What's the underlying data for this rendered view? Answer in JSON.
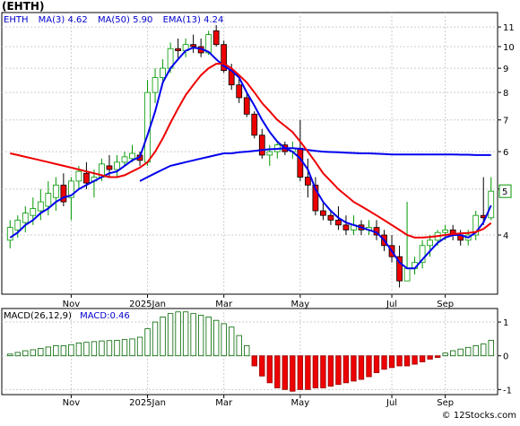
{
  "header": {
    "title": "(EHTH)",
    "indicators": [
      {
        "label": "EHTH",
        "value": ""
      },
      {
        "label": "MA(3)",
        "value": "4.62"
      },
      {
        "label": "MA(50)",
        "value": "5.90"
      },
      {
        "label": "EMA(13)",
        "value": "4.24"
      }
    ]
  },
  "macd_header": {
    "label": "MACD(26,12,9)",
    "value_label": "MACD:0.46"
  },
  "watermark": "© 12Stocks.com",
  "colors": {
    "up_candle": "#009900",
    "down_candle": "#ee0000",
    "ma3": "#0000ee",
    "ma50": "#0000ee",
    "ema13": "#ee0000",
    "macd_pos": "#006600",
    "macd_neg": "#ee0000",
    "grid": "#cccccc"
  },
  "chart_data": [
    {
      "type": "candlestick",
      "title": "(EHTH)",
      "y_scale": "log",
      "ylim": [
        3.0,
        11.8
      ],
      "y_ticks": [
        4,
        5,
        6,
        7,
        8,
        9,
        10,
        11
      ],
      "x_ticks": [
        "Nov",
        "2025Jan",
        "Mar",
        "May",
        "Jul",
        "Sep"
      ],
      "grid": true,
      "last_price_label": "5",
      "candles": [
        {
          "o": 3.9,
          "h": 4.3,
          "l": 3.75,
          "c": 4.15
        },
        {
          "o": 4.1,
          "h": 4.4,
          "l": 3.95,
          "c": 4.3
        },
        {
          "o": 4.25,
          "h": 4.6,
          "l": 4.05,
          "c": 4.45
        },
        {
          "o": 4.4,
          "h": 4.8,
          "l": 4.2,
          "c": 4.55
        },
        {
          "o": 4.5,
          "h": 5.0,
          "l": 4.3,
          "c": 4.7
        },
        {
          "o": 4.6,
          "h": 5.2,
          "l": 4.4,
          "c": 4.9
        },
        {
          "o": 4.8,
          "h": 5.3,
          "l": 4.5,
          "c": 5.1
        },
        {
          "o": 5.1,
          "h": 5.4,
          "l": 4.6,
          "c": 4.7
        },
        {
          "o": 4.8,
          "h": 5.3,
          "l": 4.3,
          "c": 5.2
        },
        {
          "o": 5.2,
          "h": 5.6,
          "l": 5.0,
          "c": 5.45
        },
        {
          "o": 5.4,
          "h": 5.7,
          "l": 5.0,
          "c": 5.15
        },
        {
          "o": 5.2,
          "h": 5.5,
          "l": 4.8,
          "c": 5.3
        },
        {
          "o": 5.3,
          "h": 5.8,
          "l": 5.2,
          "c": 5.65
        },
        {
          "o": 5.6,
          "h": 5.9,
          "l": 5.3,
          "c": 5.5
        },
        {
          "o": 5.5,
          "h": 5.9,
          "l": 5.3,
          "c": 5.7
        },
        {
          "o": 5.7,
          "h": 6.0,
          "l": 5.6,
          "c": 5.85
        },
        {
          "o": 5.8,
          "h": 6.2,
          "l": 5.7,
          "c": 5.95
        },
        {
          "o": 5.9,
          "h": 6.0,
          "l": 5.6,
          "c": 5.75
        },
        {
          "o": 5.7,
          "h": 8.5,
          "l": 5.6,
          "c": 8.0
        },
        {
          "o": 8.0,
          "h": 9.0,
          "l": 7.6,
          "c": 8.6
        },
        {
          "o": 8.6,
          "h": 9.4,
          "l": 8.3,
          "c": 9.0
        },
        {
          "o": 9.0,
          "h": 10.2,
          "l": 8.8,
          "c": 9.9
        },
        {
          "o": 9.9,
          "h": 10.4,
          "l": 9.4,
          "c": 9.8
        },
        {
          "o": 9.8,
          "h": 10.4,
          "l": 9.5,
          "c": 10.1
        },
        {
          "o": 10.1,
          "h": 10.6,
          "l": 9.7,
          "c": 10.0
        },
        {
          "o": 10.0,
          "h": 10.4,
          "l": 9.5,
          "c": 9.7
        },
        {
          "o": 9.7,
          "h": 10.8,
          "l": 9.6,
          "c": 10.6
        },
        {
          "o": 10.8,
          "h": 11.1,
          "l": 10.0,
          "c": 10.1
        },
        {
          "o": 10.1,
          "h": 10.3,
          "l": 8.8,
          "c": 8.9
        },
        {
          "o": 8.9,
          "h": 9.2,
          "l": 8.1,
          "c": 8.3
        },
        {
          "o": 8.3,
          "h": 8.6,
          "l": 7.6,
          "c": 7.8
        },
        {
          "o": 7.8,
          "h": 8.0,
          "l": 7.1,
          "c": 7.2
        },
        {
          "o": 7.2,
          "h": 7.3,
          "l": 6.4,
          "c": 6.5
        },
        {
          "o": 6.5,
          "h": 6.7,
          "l": 5.8,
          "c": 5.9
        },
        {
          "o": 5.9,
          "h": 6.2,
          "l": 5.6,
          "c": 6.0
        },
        {
          "o": 6.0,
          "h": 6.3,
          "l": 5.8,
          "c": 6.2
        },
        {
          "o": 6.2,
          "h": 6.3,
          "l": 5.9,
          "c": 6.0
        },
        {
          "o": 6.0,
          "h": 6.3,
          "l": 5.8,
          "c": 6.1
        },
        {
          "o": 6.1,
          "h": 7.0,
          "l": 5.2,
          "c": 5.3
        },
        {
          "o": 5.3,
          "h": 5.8,
          "l": 4.8,
          "c": 5.1
        },
        {
          "o": 5.1,
          "h": 5.3,
          "l": 4.4,
          "c": 4.5
        },
        {
          "o": 4.5,
          "h": 4.7,
          "l": 4.3,
          "c": 4.4
        },
        {
          "o": 4.4,
          "h": 4.5,
          "l": 4.2,
          "c": 4.3
        },
        {
          "o": 4.3,
          "h": 4.6,
          "l": 4.1,
          "c": 4.2
        },
        {
          "o": 4.2,
          "h": 4.4,
          "l": 4.0,
          "c": 4.1
        },
        {
          "o": 4.1,
          "h": 4.4,
          "l": 4.0,
          "c": 4.2
        },
        {
          "o": 4.2,
          "h": 4.3,
          "l": 4.0,
          "c": 4.1
        },
        {
          "o": 4.1,
          "h": 4.3,
          "l": 4.0,
          "c": 4.15
        },
        {
          "o": 4.15,
          "h": 4.3,
          "l": 3.9,
          "c": 4.0
        },
        {
          "o": 4.0,
          "h": 4.1,
          "l": 3.7,
          "c": 3.8
        },
        {
          "o": 3.8,
          "h": 4.0,
          "l": 3.5,
          "c": 3.6
        },
        {
          "o": 3.6,
          "h": 3.8,
          "l": 3.1,
          "c": 3.2
        },
        {
          "o": 3.2,
          "h": 4.7,
          "l": 3.2,
          "c": 3.4
        },
        {
          "o": 3.4,
          "h": 3.6,
          "l": 3.3,
          "c": 3.5
        },
        {
          "o": 3.5,
          "h": 3.9,
          "l": 3.4,
          "c": 3.8
        },
        {
          "o": 3.8,
          "h": 4.0,
          "l": 3.6,
          "c": 3.9
        },
        {
          "o": 3.9,
          "h": 4.1,
          "l": 3.8,
          "c": 4.05
        },
        {
          "o": 4.05,
          "h": 4.2,
          "l": 3.9,
          "c": 4.1
        },
        {
          "o": 4.1,
          "h": 4.2,
          "l": 3.9,
          "c": 4.0
        },
        {
          "o": 4.0,
          "h": 4.1,
          "l": 3.8,
          "c": 3.9
        },
        {
          "o": 3.9,
          "h": 4.1,
          "l": 3.8,
          "c": 4.0
        },
        {
          "o": 4.0,
          "h": 4.5,
          "l": 3.9,
          "c": 4.4
        },
        {
          "o": 4.4,
          "h": 5.3,
          "l": 4.2,
          "c": 4.35
        },
        {
          "o": 4.35,
          "h": 5.3,
          "l": 4.3,
          "c": 4.95
        }
      ],
      "series": [
        {
          "name": "MA(3)",
          "values": [
            3.95,
            4.05,
            4.2,
            4.3,
            4.45,
            4.55,
            4.7,
            4.8,
            4.85,
            5.0,
            5.1,
            5.2,
            5.3,
            5.4,
            5.45,
            5.6,
            5.75,
            5.85,
            6.5,
            7.3,
            8.4,
            9.0,
            9.4,
            9.8,
            9.95,
            9.9,
            9.75,
            9.4,
            9.1,
            8.9,
            8.6,
            8.0,
            7.5,
            7.0,
            6.6,
            6.3,
            6.1,
            6.0,
            5.8,
            5.5,
            5.0,
            4.7,
            4.5,
            4.35,
            4.25,
            4.2,
            4.15,
            4.1,
            4.05,
            3.9,
            3.7,
            3.5,
            3.4,
            3.4,
            3.55,
            3.7,
            3.85,
            3.95,
            4.0,
            4.0,
            3.95,
            4.05,
            4.25,
            4.62
          ]
        },
        {
          "name": "MA(50)",
          "values": [
            null,
            null,
            null,
            null,
            null,
            null,
            null,
            null,
            null,
            null,
            null,
            null,
            null,
            null,
            null,
            null,
            null,
            5.2,
            5.3,
            5.4,
            5.5,
            5.6,
            5.65,
            5.7,
            5.75,
            5.8,
            5.85,
            5.9,
            5.95,
            5.95,
            5.98,
            6.0,
            6.02,
            6.05,
            6.07,
            6.08,
            6.1,
            6.1,
            6.08,
            6.05,
            6.02,
            6.0,
            5.99,
            5.98,
            5.97,
            5.96,
            5.95,
            5.95,
            5.94,
            5.93,
            5.92,
            5.92,
            5.92,
            5.92,
            5.92,
            5.92,
            5.92,
            5.92,
            5.92,
            5.91,
            5.91,
            5.9,
            5.9,
            5.9
          ]
        },
        {
          "name": "EMA(13)",
          "values": [
            5.95,
            5.9,
            5.85,
            5.8,
            5.75,
            5.7,
            5.65,
            5.6,
            5.55,
            5.5,
            5.45,
            5.4,
            5.35,
            5.3,
            5.3,
            5.35,
            5.45,
            5.55,
            5.7,
            6.0,
            6.4,
            6.9,
            7.4,
            7.9,
            8.3,
            8.7,
            9.0,
            9.2,
            9.2,
            9.0,
            8.7,
            8.4,
            8.0,
            7.6,
            7.3,
            7.0,
            6.8,
            6.6,
            6.3,
            6.0,
            5.7,
            5.4,
            5.2,
            5.0,
            4.85,
            4.7,
            4.6,
            4.5,
            4.4,
            4.3,
            4.2,
            4.1,
            4.0,
            3.95,
            3.95,
            3.96,
            3.98,
            4.0,
            4.02,
            4.03,
            4.04,
            4.06,
            4.12,
            4.24
          ]
        }
      ]
    },
    {
      "type": "bar",
      "title": "MACD(26,12,9)",
      "ylim": [
        -1.15,
        1.4
      ],
      "y_ticks": [
        -1,
        0,
        1
      ],
      "x_ticks": [
        "Nov",
        "2025Jan",
        "Mar",
        "May",
        "Jul",
        "Sep"
      ],
      "grid": true,
      "values": [
        0.05,
        0.1,
        0.15,
        0.18,
        0.22,
        0.26,
        0.3,
        0.3,
        0.33,
        0.38,
        0.4,
        0.42,
        0.44,
        0.45,
        0.46,
        0.48,
        0.5,
        0.55,
        0.8,
        1.0,
        1.15,
        1.25,
        1.3,
        1.3,
        1.25,
        1.2,
        1.15,
        1.05,
        0.95,
        0.85,
        0.6,
        0.3,
        -0.3,
        -0.6,
        -0.8,
        -0.95,
        -1.0,
        -1.05,
        -1.0,
        -1.0,
        -0.95,
        -0.95,
        -0.9,
        -0.85,
        -0.8,
        -0.75,
        -0.7,
        -0.62,
        -0.5,
        -0.4,
        -0.35,
        -0.3,
        -0.3,
        -0.25,
        -0.18,
        -0.1,
        -0.05,
        0.08,
        0.15,
        0.2,
        0.25,
        0.3,
        0.35,
        0.46
      ]
    }
  ]
}
